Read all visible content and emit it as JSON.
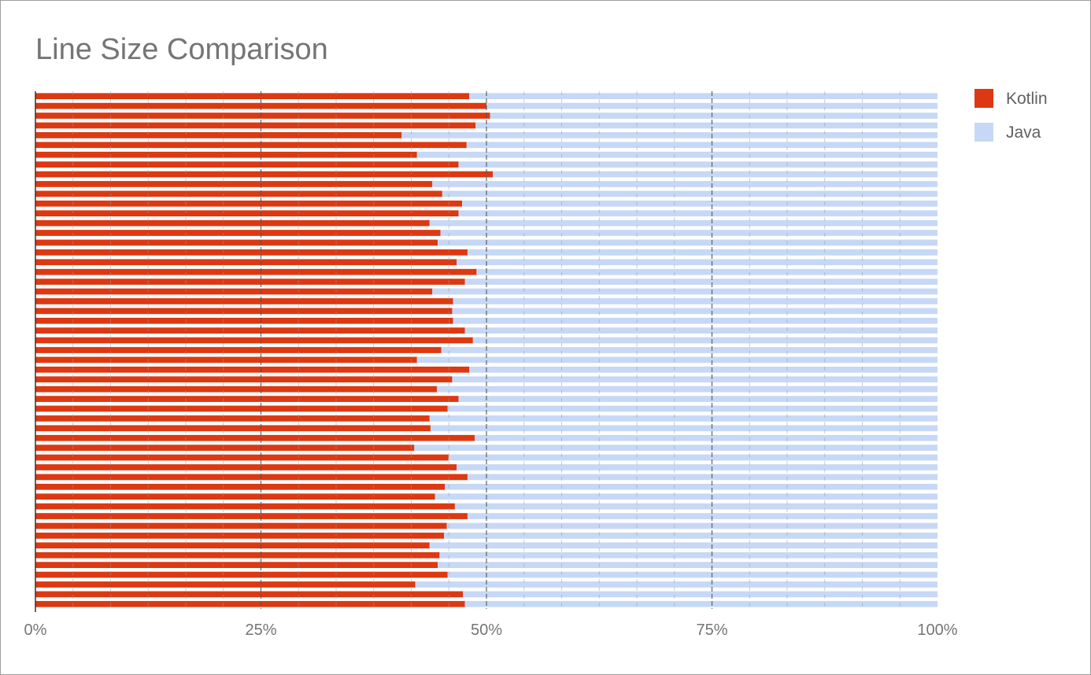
{
  "chart_data": {
    "type": "bar",
    "orientation": "horizontal",
    "stacking": "100%",
    "title": "Line Size Comparison",
    "xlabel": "",
    "ylabel": "",
    "xlim": [
      0,
      100
    ],
    "xticks": [
      "0%",
      "25%",
      "50%",
      "75%",
      "100%"
    ],
    "grid": true,
    "legend_position": "right",
    "series": [
      {
        "name": "Kotlin",
        "color": "#dc3912",
        "values": [
          48.1,
          50.0,
          50.4,
          48.8,
          40.6,
          47.8,
          42.3,
          46.9,
          50.7,
          44.0,
          45.1,
          47.3,
          46.9,
          43.7,
          44.9,
          44.6,
          47.9,
          46.7,
          48.9,
          47.6,
          44.0,
          46.3,
          46.2,
          46.3,
          47.6,
          48.5,
          45.0,
          42.3,
          48.1,
          46.2,
          44.5,
          46.9,
          45.7,
          43.7,
          43.8,
          48.7,
          42.0,
          45.8,
          46.7,
          47.9,
          45.4,
          44.3,
          46.5,
          47.9,
          45.6,
          45.3,
          43.7,
          44.8,
          44.6,
          45.7,
          42.1,
          47.4,
          47.6
        ],
        "labels": [
          "Kotlin"
        ]
      },
      {
        "name": "Java",
        "color": "#c6d8f5",
        "values": [
          51.9,
          50.0,
          49.6,
          51.2,
          59.4,
          52.2,
          57.7,
          53.1,
          49.3,
          56.0,
          54.9,
          52.7,
          53.1,
          56.3,
          55.1,
          55.4,
          52.1,
          53.3,
          51.1,
          52.4,
          56.0,
          53.7,
          53.8,
          53.7,
          52.4,
          51.5,
          55.0,
          57.7,
          51.9,
          53.8,
          55.5,
          53.1,
          54.3,
          56.3,
          56.2,
          51.3,
          58.0,
          54.2,
          53.3,
          52.1,
          54.6,
          55.7,
          53.5,
          52.1,
          54.4,
          54.7,
          56.3,
          55.2,
          55.4,
          54.3,
          57.9,
          52.6,
          52.4
        ],
        "labels": [
          "Java"
        ]
      }
    ]
  }
}
